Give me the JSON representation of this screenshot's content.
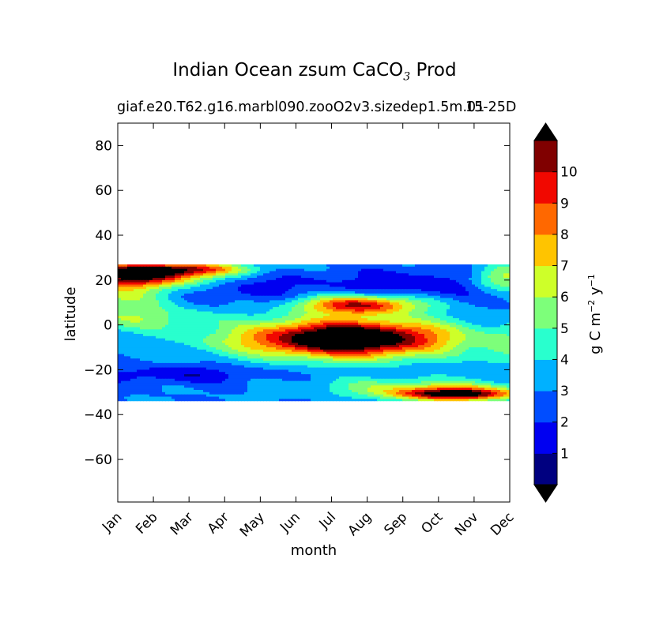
{
  "chart_data": {
    "type": "heatmap",
    "title_main": "Indian Ocean zsum CaCO",
    "title_sub": "3",
    "title_tail": " Prod",
    "subtitle_left": "giaf.e20.T62.g16.marbl090.zooO2v3.sizedep1.5m.01",
    "subtitle_right": "15-25D",
    "xlabel": "month",
    "ylabel": "latitude",
    "x_ticks": [
      "Jan",
      "Feb",
      "Mar",
      "Apr",
      "May",
      "Jun",
      "Jul",
      "Aug",
      "Sep",
      "Oct",
      "Nov",
      "Dec"
    ],
    "y_ticks": [
      80,
      60,
      40,
      20,
      0,
      -20,
      -40,
      -60
    ],
    "y_tick_labels": [
      "80",
      "60",
      "40",
      "20",
      "0",
      "−20",
      "−40",
      "−60"
    ],
    "ylim": [
      -79,
      90
    ],
    "xlim": [
      0,
      11
    ],
    "data_lat_range": [
      -34,
      27
    ],
    "colorbar": {
      "label_main": "g C m",
      "label_exp1": "−2",
      "label_y": " y",
      "label_exp2": "−1",
      "levels": [
        0,
        1,
        2,
        3,
        4,
        5,
        6,
        7,
        8,
        9,
        10,
        11
      ],
      "tick_labels": [
        "1",
        "2",
        "3",
        "4",
        "5",
        "6",
        "7",
        "8",
        "9",
        "10"
      ],
      "colors": [
        "#000080",
        "#0000f1",
        "#004dff",
        "#00b1ff",
        "#29ffce",
        "#7dff7a",
        "#ceff29",
        "#ffc400",
        "#ff6800",
        "#f10800",
        "#800000"
      ],
      "extend_low_color": "#000000",
      "extend_high_color": "#000000"
    }
  }
}
